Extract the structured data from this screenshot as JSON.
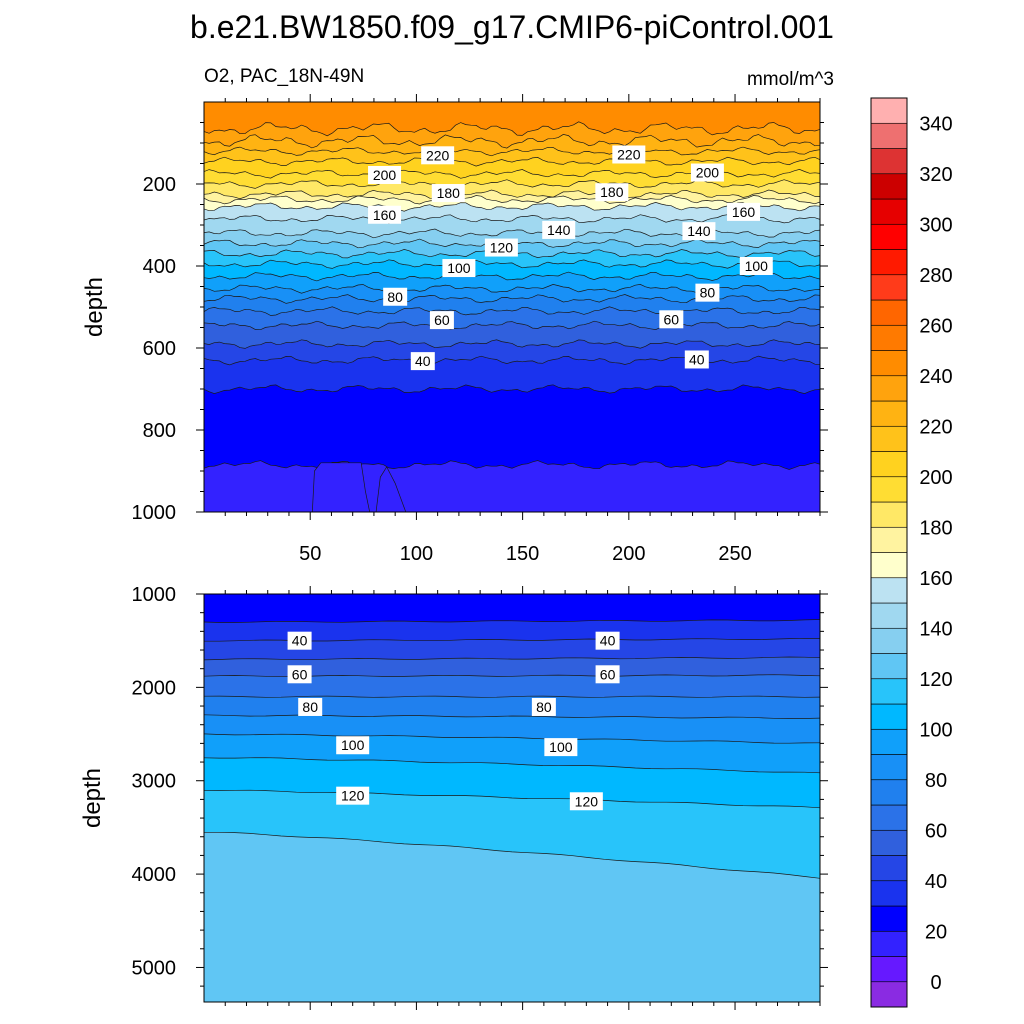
{
  "figure_title": "b.e21.BW1850.f09_g17.CMIP6-piControl.001",
  "panel_title_left": "O2, PAC_18N-49N",
  "panel_title_right": "mmol/m^3",
  "colors": {
    "levels": [
      "#8a2be2",
      "#6619ff",
      "#3322ff",
      "#0000ff",
      "#1a33ee",
      "#2546e6",
      "#3060dd",
      "#2b72e8",
      "#2080ee",
      "#1890f6",
      "#10a0fa",
      "#00b8ff",
      "#28c4fa",
      "#60c6f4",
      "#86cff0",
      "#a0d8f0",
      "#bce2f2",
      "#ffffcc",
      "#fff3a0",
      "#ffe866",
      "#ffdd33",
      "#ffd21f",
      "#ffc21a",
      "#ffb312",
      "#ffa30d",
      "#ff8c00",
      "#ff7a00",
      "#ff6600",
      "#ff3b1a",
      "#ff1a00",
      "#ff0000",
      "#e60000",
      "#cc0000",
      "#dd3333",
      "#ee7070",
      "#ffb0b0"
    ],
    "frame": "#000000"
  },
  "chart_data": [
    {
      "type": "contour",
      "panel": "top",
      "xlabel": "",
      "ylabel": "depth",
      "xlim": [
        0,
        290
      ],
      "ylim": [
        1000,
        0
      ],
      "xticks": [
        50,
        100,
        150,
        200,
        250
      ],
      "yticks": [
        200,
        400,
        600,
        800,
        1000
      ],
      "contour_depths": [
        {
          "level": 240,
          "depth": 65
        },
        {
          "level": 230,
          "depth": 95
        },
        {
          "level": 220,
          "depth": 120
        },
        {
          "level": 210,
          "depth": 145
        },
        {
          "level": 200,
          "depth": 175
        },
        {
          "level": 190,
          "depth": 200
        },
        {
          "level": 180,
          "depth": 225
        },
        {
          "level": 170,
          "depth": 238
        },
        {
          "level": 160,
          "depth": 255
        },
        {
          "level": 150,
          "depth": 285
        },
        {
          "level": 140,
          "depth": 320
        },
        {
          "level": 130,
          "depth": 345
        },
        {
          "level": 120,
          "depth": 370
        },
        {
          "level": 110,
          "depth": 395
        },
        {
          "level": 100,
          "depth": 425
        },
        {
          "level": 90,
          "depth": 455
        },
        {
          "level": 80,
          "depth": 480
        },
        {
          "level": 70,
          "depth": 510
        },
        {
          "level": 60,
          "depth": 545
        },
        {
          "level": 50,
          "depth": 590
        },
        {
          "level": 40,
          "depth": 630
        },
        {
          "level": 30,
          "depth": 700
        },
        {
          "level": 20,
          "depth": 885
        }
      ],
      "contour_labels": [
        {
          "text": "220",
          "x": 110,
          "depth": 130
        },
        {
          "text": "220",
          "x": 200,
          "depth": 128
        },
        {
          "text": "200",
          "x": 85,
          "depth": 178
        },
        {
          "text": "200",
          "x": 237,
          "depth": 172
        },
        {
          "text": "180",
          "x": 115,
          "depth": 222
        },
        {
          "text": "180",
          "x": 192,
          "depth": 220
        },
        {
          "text": "160",
          "x": 85,
          "depth": 275
        },
        {
          "text": "160",
          "x": 254,
          "depth": 268
        },
        {
          "text": "140",
          "x": 167,
          "depth": 312
        },
        {
          "text": "140",
          "x": 233,
          "depth": 315
        },
        {
          "text": "120",
          "x": 140,
          "depth": 355
        },
        {
          "text": "100",
          "x": 120,
          "depth": 405
        },
        {
          "text": "100",
          "x": 260,
          "depth": 400
        },
        {
          "text": "80",
          "x": 90,
          "depth": 475
        },
        {
          "text": "80",
          "x": 237,
          "depth": 465
        },
        {
          "text": "60",
          "x": 112,
          "depth": 532
        },
        {
          "text": "60",
          "x": 220,
          "depth": 530
        },
        {
          "text": "40",
          "x": 103,
          "depth": 632
        },
        {
          "text": "40",
          "x": 232,
          "depth": 628
        }
      ]
    },
    {
      "type": "contour",
      "panel": "bottom",
      "xlabel": "",
      "ylabel": "depth",
      "xlim": [
        0,
        290
      ],
      "ylim": [
        5370,
        1000
      ],
      "yticks": [
        1000,
        2000,
        3000,
        4000,
        5000
      ],
      "contour_depths": [
        {
          "level": 30,
          "depth_left": 1300,
          "depth_right": 1280
        },
        {
          "level": 40,
          "depth_left": 1500,
          "depth_right": 1480
        },
        {
          "level": 50,
          "depth_left": 1700,
          "depth_right": 1680
        },
        {
          "level": 60,
          "depth_left": 1880,
          "depth_right": 1870
        },
        {
          "level": 70,
          "depth_left": 2100,
          "depth_right": 2100
        },
        {
          "level": 80,
          "depth_left": 2300,
          "depth_right": 2330
        },
        {
          "level": 90,
          "depth_left": 2500,
          "depth_right": 2600
        },
        {
          "level": 100,
          "depth_left": 2750,
          "depth_right": 2920
        },
        {
          "level": 110,
          "depth_left": 3100,
          "depth_right": 3290
        },
        {
          "level": 120,
          "depth_left": 3550,
          "depth_right": 4040
        }
      ],
      "contour_labels": [
        {
          "text": "40",
          "x": 45,
          "depth": 1500
        },
        {
          "text": "40",
          "x": 190,
          "depth": 1500
        },
        {
          "text": "60",
          "x": 45,
          "depth": 1860
        },
        {
          "text": "60",
          "x": 190,
          "depth": 1860
        },
        {
          "text": "80",
          "x": 50,
          "depth": 2210
        },
        {
          "text": "80",
          "x": 160,
          "depth": 2210
        },
        {
          "text": "100",
          "x": 70,
          "depth": 2620
        },
        {
          "text": "100",
          "x": 168,
          "depth": 2640
        },
        {
          "text": "120",
          "x": 70,
          "depth": 3160
        },
        {
          "text": "120",
          "x": 180,
          "depth": 3220
        }
      ]
    },
    {
      "type": "colorbar",
      "tick_labels": [
        "0",
        "20",
        "40",
        "60",
        "80",
        "100",
        "120",
        "140",
        "160",
        "180",
        "200",
        "220",
        "240",
        "260",
        "280",
        "300",
        "320",
        "340"
      ]
    }
  ]
}
